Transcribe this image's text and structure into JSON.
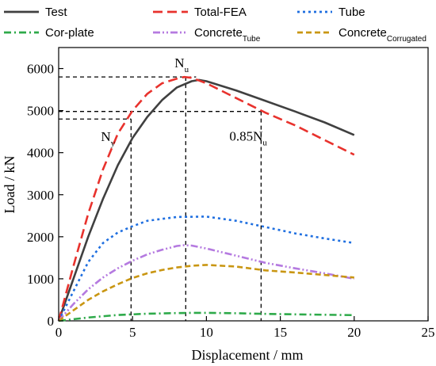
{
  "chart_data": {
    "type": "line",
    "xlabel": "Displacement / mm",
    "ylabel": "Load / kN",
    "xlim": [
      0,
      25
    ],
    "ylim": [
      0,
      6500
    ],
    "xticks": [
      "0",
      "5",
      "10",
      "15",
      "20",
      "25"
    ],
    "yticks": [
      "0",
      "1000",
      "2000",
      "3000",
      "4000",
      "5000",
      "6000"
    ],
    "grid": false,
    "legend_position": "top",
    "series": [
      {
        "name": "Test",
        "name_sub": "",
        "color": "#404040",
        "dash": "solid",
        "x": [
          0,
          1,
          2,
          3,
          4,
          5,
          6,
          7,
          8,
          9,
          9.5,
          10,
          12,
          14,
          16,
          18,
          20
        ],
        "y": [
          0,
          1000,
          2000,
          2900,
          3700,
          4350,
          4850,
          5250,
          5550,
          5700,
          5730,
          5700,
          5480,
          5230,
          4980,
          4720,
          4420
        ]
      },
      {
        "name": "Total-FEA",
        "name_sub": "",
        "color": "#e8322d",
        "dash": "long",
        "x": [
          0,
          1,
          2,
          3,
          4,
          5,
          6,
          7,
          8,
          8.5,
          9,
          10,
          12,
          14,
          16,
          18,
          20
        ],
        "y": [
          0,
          1300,
          2550,
          3600,
          4450,
          5000,
          5400,
          5650,
          5760,
          5800,
          5780,
          5650,
          5300,
          4950,
          4650,
          4300,
          3950
        ]
      },
      {
        "name": "Tube",
        "name_sub": "",
        "color": "#1f6fe0",
        "dash": "short",
        "x": [
          0,
          1,
          2,
          3,
          4,
          5,
          6,
          8,
          10,
          12,
          14,
          16,
          18,
          20
        ],
        "y": [
          0,
          700,
          1400,
          1850,
          2100,
          2250,
          2380,
          2470,
          2480,
          2380,
          2230,
          2080,
          1960,
          1850
        ]
      },
      {
        "name": "Cor-plate",
        "name_sub": "",
        "color": "#2eaa4a",
        "dash": "dashdot",
        "x": [
          0,
          2,
          4,
          6,
          8,
          9,
          10,
          12,
          14,
          16,
          18,
          20
        ],
        "y": [
          0,
          80,
          140,
          170,
          185,
          190,
          190,
          180,
          165,
          155,
          145,
          135
        ]
      },
      {
        "name": "Concrete",
        "name_sub": "Tube",
        "color": "#b57ae0",
        "dash": "dashdotdot",
        "x": [
          0,
          1,
          2,
          3,
          4,
          5,
          6,
          7,
          8,
          8.5,
          9,
          10,
          12,
          14,
          16,
          18,
          20
        ],
        "y": [
          0,
          400,
          750,
          1030,
          1250,
          1430,
          1580,
          1690,
          1780,
          1800,
          1790,
          1720,
          1550,
          1380,
          1250,
          1130,
          1000
        ]
      },
      {
        "name": "Concrete",
        "name_sub": "Corrugated",
        "color": "#c99612",
        "dash": "medium",
        "x": [
          0,
          1,
          2,
          3,
          4,
          5,
          6,
          7,
          8,
          9,
          10,
          12,
          14,
          16,
          18,
          20
        ],
        "y": [
          0,
          250,
          500,
          700,
          870,
          1020,
          1130,
          1210,
          1270,
          1310,
          1330,
          1290,
          1200,
          1150,
          1090,
          1030
        ]
      }
    ],
    "annotations": [
      {
        "main": "N",
        "sub": "y",
        "x": 4.9,
        "y": 4800
      },
      {
        "main": "N",
        "sub": "u",
        "x": 8.6,
        "y": 5800
      },
      {
        "main": "0.85N",
        "sub": "u",
        "x": 13.7,
        "y": 4980
      }
    ]
  }
}
